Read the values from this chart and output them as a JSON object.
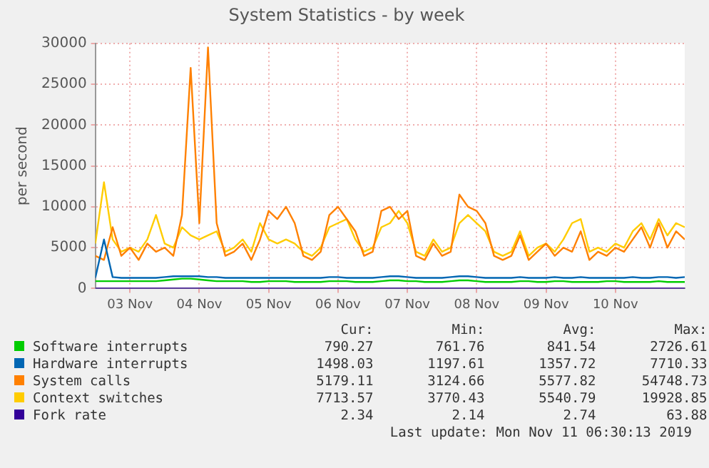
{
  "chart_data": {
    "type": "line",
    "title": "System Statistics - by week",
    "ylabel": "per second",
    "x": [
      "2019-11-03T00:00",
      "2019-11-03T03:00",
      "2019-11-03T06:00",
      "2019-11-03T09:00",
      "2019-11-03T12:00",
      "2019-11-03T15:00",
      "2019-11-03T18:00",
      "2019-11-03T21:00",
      "2019-11-04T00:00",
      "2019-11-04T03:00",
      "2019-11-04T06:00",
      "2019-11-04T09:00",
      "2019-11-04T12:00",
      "2019-11-04T15:00",
      "2019-11-04T18:00",
      "2019-11-04T21:00",
      "2019-11-05T00:00",
      "2019-11-05T03:00",
      "2019-11-05T06:00",
      "2019-11-05T09:00",
      "2019-11-05T12:00",
      "2019-11-05T15:00",
      "2019-11-05T18:00",
      "2019-11-05T21:00",
      "2019-11-06T00:00",
      "2019-11-06T03:00",
      "2019-11-06T06:00",
      "2019-11-06T09:00",
      "2019-11-06T12:00",
      "2019-11-06T15:00",
      "2019-11-06T18:00",
      "2019-11-06T21:00",
      "2019-11-07T00:00",
      "2019-11-07T03:00",
      "2019-11-07T06:00",
      "2019-11-07T09:00",
      "2019-11-07T12:00",
      "2019-11-07T15:00",
      "2019-11-07T18:00",
      "2019-11-07T21:00",
      "2019-11-08T00:00",
      "2019-11-08T03:00",
      "2019-11-08T06:00",
      "2019-11-08T09:00",
      "2019-11-08T12:00",
      "2019-11-08T15:00",
      "2019-11-08T18:00",
      "2019-11-08T21:00",
      "2019-11-09T00:00",
      "2019-11-09T03:00",
      "2019-11-09T06:00",
      "2019-11-09T09:00",
      "2019-11-09T12:00",
      "2019-11-09T15:00",
      "2019-11-09T18:00",
      "2019-11-09T21:00",
      "2019-11-10T00:00",
      "2019-11-10T03:00",
      "2019-11-10T06:00",
      "2019-11-10T09:00",
      "2019-11-10T12:00",
      "2019-11-10T15:00",
      "2019-11-10T18:00",
      "2019-11-10T21:00",
      "2019-11-11T00:00",
      "2019-11-11T03:00",
      "2019-11-11T06:00",
      "2019-11-11T09:00",
      "2019-11-11T12:00"
    ],
    "series": [
      {
        "name": "Software interrupts",
        "color": "#00cc00",
        "values": [
          900,
          900,
          900,
          900,
          900,
          900,
          900,
          900,
          1000,
          1100,
          1200,
          1200,
          1100,
          1000,
          900,
          900,
          900,
          900,
          800,
          800,
          900,
          900,
          900,
          800,
          800,
          800,
          800,
          900,
          900,
          900,
          800,
          800,
          800,
          900,
          1000,
          1000,
          900,
          900,
          800,
          800,
          800,
          900,
          1000,
          1000,
          900,
          800,
          800,
          800,
          800,
          900,
          900,
          800,
          800,
          900,
          900,
          800,
          800,
          800,
          800,
          900,
          900,
          800,
          800,
          800,
          800,
          900,
          800,
          800,
          800
        ]
      },
      {
        "name": "Hardware interrupts",
        "color": "#0066b3",
        "values": [
          1300,
          6000,
          1400,
          1300,
          1300,
          1300,
          1300,
          1300,
          1400,
          1500,
          1500,
          1500,
          1500,
          1400,
          1400,
          1300,
          1300,
          1300,
          1300,
          1300,
          1300,
          1300,
          1300,
          1300,
          1300,
          1300,
          1300,
          1400,
          1400,
          1300,
          1300,
          1300,
          1300,
          1400,
          1500,
          1500,
          1400,
          1300,
          1300,
          1300,
          1300,
          1400,
          1500,
          1500,
          1400,
          1300,
          1300,
          1300,
          1300,
          1400,
          1300,
          1300,
          1300,
          1400,
          1300,
          1300,
          1400,
          1300,
          1300,
          1300,
          1300,
          1300,
          1400,
          1300,
          1300,
          1400,
          1400,
          1300,
          1400
        ]
      },
      {
        "name": "System calls",
        "color": "#ff8000",
        "values": [
          4000,
          3500,
          7500,
          4000,
          5000,
          3500,
          5500,
          4500,
          5000,
          4000,
          9000,
          27000,
          8000,
          29500,
          8000,
          4000,
          4500,
          5500,
          3500,
          6000,
          9500,
          8500,
          10000,
          8000,
          4000,
          3500,
          4500,
          9000,
          10000,
          8500,
          7000,
          4000,
          4500,
          9500,
          10000,
          8500,
          9500,
          4000,
          3500,
          5500,
          4000,
          4500,
          11500,
          10000,
          9500,
          8000,
          4000,
          3500,
          4000,
          6500,
          3500,
          4500,
          5500,
          4000,
          5000,
          4500,
          7000,
          3500,
          4500,
          4000,
          5000,
          4500,
          6000,
          7500,
          5000,
          8000,
          5000,
          7000,
          6000
        ]
      },
      {
        "name": "Context switches",
        "color": "#ffcc00",
        "values": [
          5500,
          13000,
          6000,
          4500,
          5000,
          4500,
          6000,
          9000,
          5500,
          5000,
          7500,
          6500,
          6000,
          6500,
          7000,
          4500,
          5000,
          6000,
          4500,
          8000,
          6000,
          5500,
          6000,
          5500,
          4500,
          4000,
          5000,
          7500,
          8000,
          8500,
          6000,
          4500,
          5000,
          7500,
          8000,
          9500,
          8000,
          4500,
          4000,
          6000,
          4500,
          5000,
          8000,
          9000,
          8000,
          7000,
          4500,
          4000,
          4500,
          7000,
          4000,
          5000,
          5500,
          4500,
          6000,
          8000,
          8500,
          4500,
          5000,
          4500,
          5500,
          5000,
          7000,
          8000,
          6000,
          8500,
          6500,
          8000,
          7500
        ]
      },
      {
        "name": "Fork rate",
        "color": "#330099",
        "values": [
          0,
          0,
          0,
          0,
          0,
          0,
          0,
          0,
          0,
          0,
          0,
          0,
          0,
          0,
          0,
          0,
          0,
          0,
          0,
          0,
          0,
          0,
          0,
          0,
          0,
          0,
          0,
          0,
          0,
          0,
          0,
          0,
          0,
          0,
          0,
          0,
          0,
          0,
          0,
          0,
          0,
          0,
          0,
          0,
          0,
          0,
          0,
          0,
          0,
          0,
          0,
          0,
          0,
          0,
          0,
          0,
          0,
          0,
          0,
          0,
          0,
          0,
          0,
          0,
          0,
          0,
          0,
          0,
          0
        ]
      }
    ],
    "xlim": [
      "2019-11-03T00:00",
      "2019-11-11T12:00"
    ],
    "xticks": [
      {
        "value": "2019-11-03T12:00",
        "label": "03 Nov"
      },
      {
        "value": "2019-11-04T12:00",
        "label": "04 Nov"
      },
      {
        "value": "2019-11-05T12:00",
        "label": "05 Nov"
      },
      {
        "value": "2019-11-06T12:00",
        "label": "06 Nov"
      },
      {
        "value": "2019-11-07T12:00",
        "label": "07 Nov"
      },
      {
        "value": "2019-11-08T12:00",
        "label": "08 Nov"
      },
      {
        "value": "2019-11-09T12:00",
        "label": "09 Nov"
      },
      {
        "value": "2019-11-10T12:00",
        "label": "10 Nov"
      }
    ],
    "ylim": [
      0,
      30000
    ],
    "yticks": [
      0,
      5000,
      10000,
      15000,
      20000,
      25000,
      30000
    ],
    "grid": true,
    "legend": "bottom",
    "marker": "none",
    "line_style": "solid",
    "annotations": [
      "Cur:",
      "Min:",
      "Avg:",
      "Max:",
      "790.27",
      "761.76",
      "841.54",
      "2726.61",
      "1498.03",
      "1197.61",
      "1357.72",
      "7710.33",
      "5179.11",
      "3124.66",
      "5577.82",
      "54748.73",
      "7713.57",
      "3770.43",
      "5540.79",
      "19928.85",
      "2.34",
      "2.14",
      "2.74",
      "63.88",
      "Last update: Mon Nov 11 06:30:13 2019"
    ]
  }
}
